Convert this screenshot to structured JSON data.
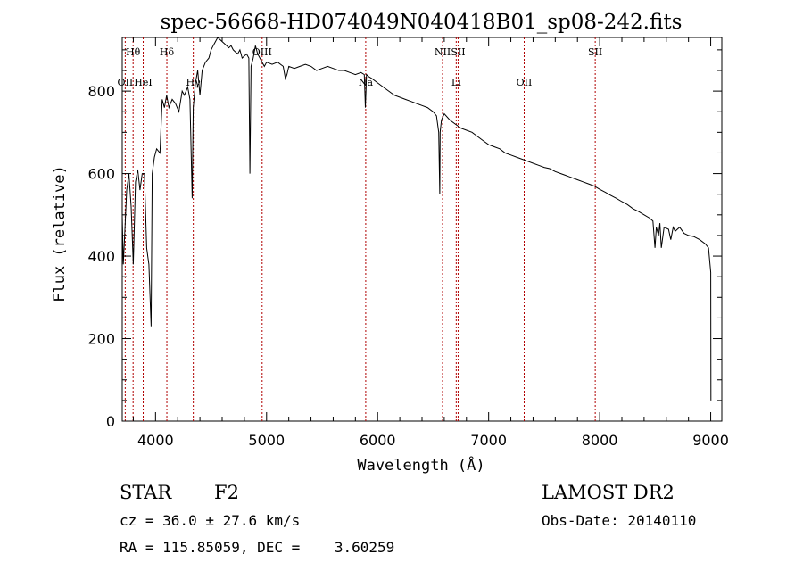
{
  "chart_data": {
    "type": "line",
    "title": "spec-56668-HD074049N040418B01_sp08-242.fits",
    "xlabel": "Wavelength (Å)",
    "ylabel": "Flux (relative)",
    "xlim": [
      3700,
      9100
    ],
    "ylim": [
      0,
      930
    ],
    "xticks": [
      4000,
      5000,
      6000,
      7000,
      8000,
      9000
    ],
    "yticks": [
      0,
      200,
      400,
      600,
      800
    ],
    "grid": false,
    "series": [
      {
        "x": [
          3700,
          3710,
          3720,
          3740,
          3760,
          3780,
          3800,
          3820,
          3840,
          3860,
          3880,
          3900,
          3920,
          3940,
          3960,
          3970,
          3990,
          4010,
          4040,
          4060,
          4080,
          4100,
          4120,
          4150,
          4180,
          4210,
          4240,
          4260,
          4290,
          4310,
          4330,
          4340,
          4360,
          4380,
          4400,
          4420,
          4450,
          4480,
          4500,
          4520,
          4540,
          4560,
          4580,
          4600,
          4620,
          4640,
          4660,
          4680,
          4700,
          4720,
          4740,
          4760,
          4780,
          4800,
          4820,
          4840,
          4850,
          4860,
          4870,
          4880,
          4900,
          4920,
          4940,
          4960,
          4980,
          5000,
          5050,
          5100,
          5150,
          5170,
          5183,
          5200,
          5250,
          5300,
          5350,
          5400,
          5450,
          5500,
          5550,
          5600,
          5650,
          5700,
          5750,
          5800,
          5850,
          5880,
          5890,
          5895,
          5900,
          5920,
          5950,
          6000,
          6050,
          6100,
          6150,
          6200,
          6250,
          6300,
          6350,
          6400,
          6450,
          6500,
          6530,
          6550,
          6560,
          6563,
          6567,
          6575,
          6600,
          6650,
          6700,
          6750,
          6800,
          6850,
          6900,
          6950,
          7000,
          7050,
          7100,
          7150,
          7200,
          7250,
          7300,
          7350,
          7400,
          7450,
          7500,
          7550,
          7600,
          7650,
          7700,
          7750,
          7800,
          7850,
          7900,
          7950,
          8000,
          8050,
          8100,
          8150,
          8200,
          8250,
          8300,
          8350,
          8400,
          8450,
          8480,
          8498,
          8510,
          8530,
          8542,
          8555,
          8580,
          8620,
          8640,
          8662,
          8680,
          8720,
          8760,
          8800,
          8850,
          8900,
          8950,
          8980,
          9000,
          9002
        ],
        "values": [
          500,
          380,
          440,
          560,
          600,
          520,
          380,
          580,
          610,
          560,
          600,
          600,
          420,
          380,
          230,
          600,
          640,
          660,
          650,
          780,
          760,
          790,
          760,
          780,
          770,
          750,
          800,
          790,
          810,
          780,
          540,
          760,
          820,
          850,
          790,
          850,
          870,
          880,
          900,
          910,
          920,
          930,
          925,
          920,
          915,
          910,
          905,
          910,
          900,
          895,
          890,
          900,
          880,
          885,
          890,
          880,
          600,
          860,
          870,
          880,
          910,
          890,
          880,
          870,
          860,
          870,
          865,
          870,
          860,
          830,
          840,
          860,
          855,
          860,
          865,
          860,
          850,
          855,
          860,
          855,
          850,
          850,
          845,
          840,
          845,
          840,
          760,
          800,
          840,
          835,
          830,
          820,
          810,
          800,
          790,
          785,
          780,
          775,
          770,
          765,
          760,
          750,
          740,
          700,
          550,
          700,
          710,
          730,
          745,
          730,
          720,
          710,
          705,
          700,
          690,
          680,
          670,
          665,
          660,
          650,
          645,
          640,
          635,
          630,
          625,
          620,
          615,
          612,
          605,
          600,
          595,
          590,
          585,
          580,
          575,
          570,
          562,
          555,
          547,
          540,
          532,
          525,
          515,
          508,
          500,
          492,
          485,
          420,
          470,
          450,
          480,
          420,
          470,
          465,
          440,
          470,
          460,
          470,
          455,
          450,
          447,
          440,
          430,
          420,
          360,
          50
        ]
      }
    ],
    "lines": [
      {
        "label": "OII",
        "x": 3727
      },
      {
        "label": "Hθ",
        "x": 3798
      },
      {
        "label": "HeI",
        "x": 3889
      },
      {
        "label": "Hδ",
        "x": 4102
      },
      {
        "label": "Hγ",
        "x": 4340
      },
      {
        "label": "OIII",
        "x": 4960
      },
      {
        "label": "Na",
        "x": 5893
      },
      {
        "label": "NII",
        "x": 6585
      },
      {
        "label": "Li",
        "x": 6708
      },
      {
        "label": "SII",
        "x": 6725
      },
      {
        "label": "OII",
        "x": 7320
      },
      {
        "label": "SII",
        "x": 7960
      }
    ]
  },
  "info": {
    "class_label": "STAR",
    "subclass": "F2",
    "survey": "LAMOST DR2",
    "cz": "cz = 36.0 ± 27.6 km/s",
    "obs_date": "Obs-Date: 20140110",
    "coords": "RA = 115.85059, DEC =    3.60259"
  }
}
